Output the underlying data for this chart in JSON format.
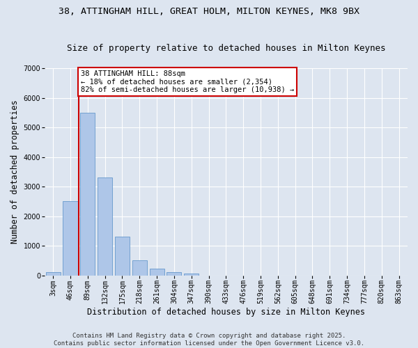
{
  "title_line1": "38, ATTINGHAM HILL, GREAT HOLM, MILTON KEYNES, MK8 9BX",
  "title_line2": "Size of property relative to detached houses in Milton Keynes",
  "xlabel": "Distribution of detached houses by size in Milton Keynes",
  "ylabel": "Number of detached properties",
  "categories": [
    "3sqm",
    "46sqm",
    "89sqm",
    "132sqm",
    "175sqm",
    "218sqm",
    "261sqm",
    "304sqm",
    "347sqm",
    "390sqm",
    "433sqm",
    "476sqm",
    "519sqm",
    "562sqm",
    "605sqm",
    "648sqm",
    "691sqm",
    "734sqm",
    "777sqm",
    "820sqm",
    "863sqm"
  ],
  "values": [
    100,
    2500,
    5500,
    3300,
    1300,
    500,
    230,
    100,
    60,
    0,
    0,
    0,
    0,
    0,
    0,
    0,
    0,
    0,
    0,
    0,
    0
  ],
  "bar_color": "#aec6e8",
  "bar_edge_color": "#6699cc",
  "ylim": [
    0,
    7000
  ],
  "yticks": [
    0,
    1000,
    2000,
    3000,
    4000,
    5000,
    6000,
    7000
  ],
  "vline_color": "#cc0000",
  "vline_x_index": 2,
  "annotation_text": "38 ATTINGHAM HILL: 88sqm\n← 18% of detached houses are smaller (2,354)\n82% of semi-detached houses are larger (10,938) →",
  "annotation_box_color": "#cc0000",
  "footer_line1": "Contains HM Land Registry data © Crown copyright and database right 2025.",
  "footer_line2": "Contains public sector information licensed under the Open Government Licence v3.0.",
  "background_color": "#dde5f0",
  "plot_background_color": "#dde5f0",
  "grid_color": "#ffffff",
  "title_fontsize": 9.5,
  "subtitle_fontsize": 9,
  "axis_label_fontsize": 8.5,
  "tick_fontsize": 7,
  "annotation_fontsize": 7.5,
  "footer_fontsize": 6.5
}
